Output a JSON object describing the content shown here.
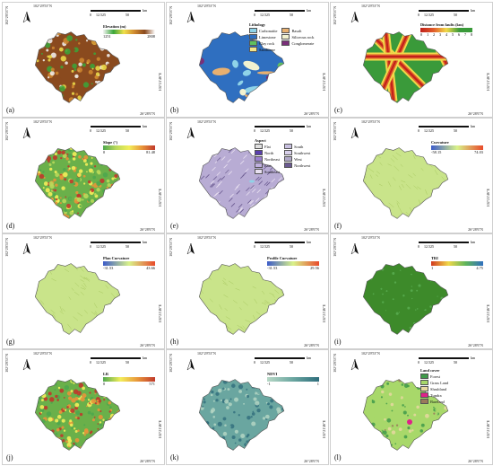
{
  "colors": {
    "elevation": [
      "#f4f4f4",
      "#3aa63a",
      "#f0e04a",
      "#d08a30",
      "#8a4a1e",
      "#ffffff"
    ],
    "slope": [
      "#4ea74e",
      "#b9d95a",
      "#f3ee5a",
      "#e8953a",
      "#c0392b"
    ],
    "curvature": [
      "#3c5bc8",
      "#d9f28a",
      "#e84a2a"
    ],
    "twi": [
      "#d23a1f",
      "#f0d84a",
      "#5fb55a",
      "#2f6fbf"
    ],
    "ndvi": [
      "#b8d8c6",
      "#6aa6a0",
      "#2f6d7c"
    ],
    "lr": [
      "#4ea74e",
      "#f3ee5a",
      "#e8953a",
      "#c0392b"
    ]
  },
  "panels": [
    {
      "label": "(a)",
      "lat_top": "102°29'53\"N",
      "lat_side": "102°21'46\"E",
      "lon_bottom": "26°28'6\"N",
      "scale": {
        "ticks": [
          "0",
          "12.5",
          "25",
          "50"
        ],
        "unit": "km"
      },
      "legend": {
        "title": "Elevation (m)",
        "min": "1251",
        "max": "2808"
      },
      "map_style": "elevation"
    },
    {
      "label": "(b)",
      "lat_top": "102°29'53\"N",
      "lat_side": "102°21'46\"E",
      "lon_bottom": "26°28'6\"N",
      "scale": {
        "ticks": [
          "0",
          "12.5",
          "25",
          "50"
        ],
        "unit": "km"
      },
      "legend": {
        "title": "Lithology",
        "items": [
          {
            "label": "Carbonatite",
            "color": "#8fd3e8"
          },
          {
            "label": "Basalt",
            "color": "#e8b070"
          },
          {
            "label": "Limestone",
            "color": "#2f6fc0"
          },
          {
            "label": "Siliceous rock",
            "color": "#f2f2d0"
          },
          {
            "label": "Clay rock",
            "color": "#5fbf5f"
          },
          {
            "label": "Conglomerate",
            "color": "#7a2f7a"
          },
          {
            "label": "Sandstone",
            "color": "#f4e48a"
          }
        ]
      },
      "map_style": "lithology"
    },
    {
      "label": "(c)",
      "lat_top": "102°29'53\"N",
      "lat_side": "102°21'46\"E",
      "lon_bottom": "26°28'6\"N",
      "scale": {
        "ticks": [
          "0",
          "12.5",
          "25",
          "50"
        ],
        "unit": "km"
      },
      "legend": {
        "title": "Distance from faults (km)",
        "ticks": [
          "0",
          "1",
          "2",
          "3",
          "4",
          "5",
          "6",
          "7",
          "8"
        ]
      },
      "map_style": "faults"
    },
    {
      "label": "(d)",
      "lat_top": "102°29'53\"N",
      "lat_side": "102°21'46\"E",
      "lon_bottom": "26°28'6\"N",
      "scale": {
        "ticks": [
          "0",
          "12.5",
          "25",
          "50"
        ],
        "unit": "km"
      },
      "legend": {
        "title": "Slope (°)",
        "min": "0",
        "max": "81.48"
      },
      "map_style": "slope"
    },
    {
      "label": "(e)",
      "lat_top": "102°29'53\"N",
      "lat_side": "102°21'46\"E",
      "lon_bottom": "26°28'6\"N",
      "scale": {
        "ticks": [
          "0",
          "12.5",
          "25",
          "50"
        ],
        "unit": "km"
      },
      "legend": {
        "title": "Aspect",
        "items": [
          {
            "label": "Flat",
            "color": "#e0e0e0"
          },
          {
            "label": "South",
            "color": "#c8c0e0"
          },
          {
            "label": "North",
            "color": "#5a3fae"
          },
          {
            "label": "Southwest",
            "color": "#d8d0ea"
          },
          {
            "label": "Northeast",
            "color": "#9a7fd0"
          },
          {
            "label": "West",
            "color": "#b0a8c8"
          },
          {
            "label": "East",
            "color": "#c0b0e0"
          },
          {
            "label": "Northwest",
            "color": "#6a5a90"
          },
          {
            "label": "Southeast",
            "color": "#e8e0f0"
          }
        ]
      },
      "map_style": "aspect"
    },
    {
      "label": "(f)",
      "lat_top": "102°29'53\"N",
      "lat_side": "102°21'46\"E",
      "lon_bottom": "26°28'6\"N",
      "scale": {
        "ticks": [
          "0",
          "12.5",
          "25",
          "50"
        ],
        "unit": "km"
      },
      "legend": {
        "title": "Curvature",
        "min": "-58.15",
        "max": "74.03"
      },
      "map_style": "curvature"
    },
    {
      "label": "(g)",
      "lat_top": "102°29'53\"N",
      "lat_side": "102°21'46\"E",
      "lon_bottom": "26°28'6\"N",
      "scale": {
        "ticks": [
          "0",
          "12.5",
          "25",
          "50"
        ],
        "unit": "km"
      },
      "legend": {
        "title": "Plan Curvature",
        "min": "-31.53",
        "max": "43.66"
      },
      "map_style": "curvature"
    },
    {
      "label": "(h)",
      "lat_top": "102°29'53\"N",
      "lat_side": "102°21'46\"E",
      "lon_bottom": "26°28'6\"N",
      "scale": {
        "ticks": [
          "0",
          "12.5",
          "25",
          "50"
        ],
        "unit": "km"
      },
      "legend": {
        "title": "Profile Curvature",
        "min": "-31.53",
        "max": "29.56"
      },
      "map_style": "curvature"
    },
    {
      "label": "(i)",
      "lat_top": "102°29'53\"N",
      "lat_side": "102°21'46\"E",
      "lon_bottom": "26°28'6\"N",
      "scale": {
        "ticks": [
          "0",
          "12.5",
          "25",
          "50"
        ],
        "unit": "km"
      },
      "legend": {
        "title": "TRI",
        "min": "1",
        "max": "4.75"
      },
      "map_style": "tri"
    },
    {
      "label": "(j)",
      "lat_top": "102°29'53\"N",
      "lat_side": "102°21'46\"E",
      "lon_bottom": "26°28'6\"N",
      "scale": {
        "ticks": [
          "0",
          "12.5",
          "25",
          "50"
        ],
        "unit": "km"
      },
      "legend": {
        "title": "LR",
        "min": "0",
        "max": "571"
      },
      "map_style": "slope"
    },
    {
      "label": "(k)",
      "lat_top": "102°29'53\"N",
      "lat_side": "102°21'46\"E",
      "lon_bottom": "26°28'6\"N",
      "scale": {
        "ticks": [
          "0",
          "12.5",
          "25",
          "50"
        ],
        "unit": "km"
      },
      "legend": {
        "title": "NDVI",
        "min": "-1",
        "max": "1"
      },
      "map_style": "ndvi"
    },
    {
      "label": "(l)",
      "lat_top": "102°29'53\"N",
      "lat_side": "102°21'46\"E",
      "lon_bottom": "26°28'6\"N",
      "scale": {
        "ticks": [
          "0",
          "12.5",
          "25",
          "50"
        ],
        "unit": "km"
      },
      "legend": {
        "title": "Land cover",
        "items": [
          {
            "label": "Forest",
            "color": "#3f9a4a"
          },
          {
            "label": "Grass Land",
            "color": "#a8d86a"
          },
          {
            "label": "Shrubland",
            "color": "#e8d8a0"
          },
          {
            "label": "Tundra",
            "color": "#e0208a"
          },
          {
            "label": "Bareland",
            "color": "#9a7a5a"
          }
        ]
      },
      "map_style": "landcover"
    }
  ]
}
